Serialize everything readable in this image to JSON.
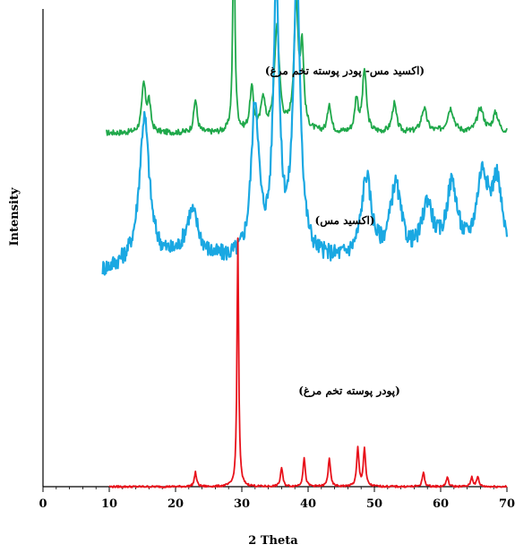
{
  "chart_data": {
    "type": "line",
    "xlabel": "2 Theta",
    "ylabel": "Intensity",
    "xlim": [
      0,
      70
    ],
    "x_ticks": [
      "0",
      "10",
      "20",
      "30",
      "40",
      "50",
      "60",
      "70"
    ],
    "y_ticks": false,
    "grid": false,
    "legend": "none",
    "annotations": [
      {
        "text": "(اکسید مس- پودر پوسته تخم مرغ)",
        "series": "top"
      },
      {
        "text": "(اکسید مس)",
        "series": "middle"
      },
      {
        "text": "(پودر پوسته تخم مرغ)",
        "series": "bottom"
      }
    ],
    "series": [
      {
        "color": "#1fa84a",
        "offset": 0.74,
        "x_range": [
          9.5,
          70
        ],
        "baseline": 0.0,
        "peaks": [
          [
            15.2,
            0.1,
            0.35
          ],
          [
            16.0,
            0.06,
            0.3
          ],
          [
            23.0,
            0.07,
            0.3
          ],
          [
            28.8,
            0.43,
            0.2
          ],
          [
            31.5,
            0.09,
            0.35
          ],
          [
            33.2,
            0.07,
            0.35
          ],
          [
            35.3,
            0.22,
            0.45
          ],
          [
            38.2,
            0.26,
            0.4
          ],
          [
            39.1,
            0.16,
            0.3
          ],
          [
            43.2,
            0.06,
            0.3
          ],
          [
            47.3,
            0.07,
            0.3
          ],
          [
            48.5,
            0.13,
            0.35
          ],
          [
            53.0,
            0.06,
            0.4
          ],
          [
            57.5,
            0.05,
            0.5
          ],
          [
            61.5,
            0.05,
            0.6
          ],
          [
            66.0,
            0.05,
            0.6
          ],
          [
            68.3,
            0.04,
            0.5
          ]
        ]
      },
      {
        "color": "#1aa8e2",
        "offset": 0.42,
        "x_range": [
          9.0,
          70
        ],
        "baseline": 0.0,
        "peaks": [
          [
            15.3,
            0.3,
            0.9
          ],
          [
            22.5,
            0.1,
            1.2
          ],
          [
            32.0,
            0.32,
            0.7
          ],
          [
            35.2,
            0.56,
            0.55
          ],
          [
            38.3,
            0.58,
            0.65
          ],
          [
            48.8,
            0.17,
            0.9
          ],
          [
            53.2,
            0.15,
            1.0
          ],
          [
            58.0,
            0.11,
            1.0
          ],
          [
            61.7,
            0.15,
            1.0
          ],
          [
            66.3,
            0.17,
            1.1
          ],
          [
            68.5,
            0.15,
            0.9
          ]
        ]
      },
      {
        "color": "#e8121b",
        "offset": 0.0,
        "x_range": [
          10.0,
          70
        ],
        "baseline": 0.0,
        "peaks": [
          [
            23.0,
            0.03,
            0.2
          ],
          [
            29.4,
            0.52,
            0.15
          ],
          [
            36.0,
            0.04,
            0.2
          ],
          [
            39.4,
            0.06,
            0.2
          ],
          [
            43.2,
            0.06,
            0.2
          ],
          [
            47.5,
            0.08,
            0.2
          ],
          [
            48.5,
            0.08,
            0.2
          ],
          [
            57.4,
            0.03,
            0.2
          ],
          [
            61.0,
            0.02,
            0.2
          ],
          [
            64.7,
            0.02,
            0.2
          ],
          [
            65.6,
            0.02,
            0.2
          ]
        ]
      }
    ]
  }
}
